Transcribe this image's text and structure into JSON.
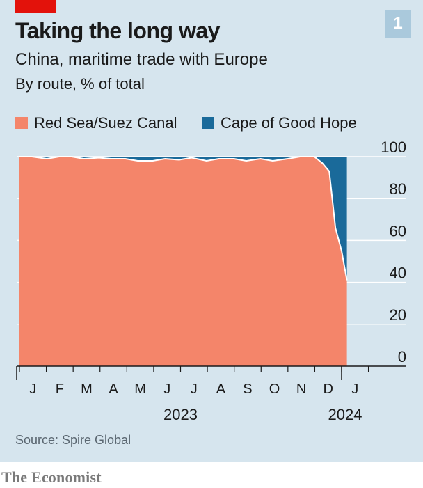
{
  "header": {
    "title": "Taking the long way",
    "subtitle": "China, maritime trade with Europe",
    "unit_line": "By route, % of total",
    "chart_number": "1"
  },
  "legend": [
    {
      "label": "Red Sea/Suez Canal",
      "color": "#f4856a"
    },
    {
      "label": "Cape of Good Hope",
      "color": "#1a6a9a"
    }
  ],
  "source": "Source: Spire Global",
  "brand": "The Economist",
  "chart_data": {
    "type": "area",
    "stacked": true,
    "x_tick_labels": [
      "J",
      "F",
      "M",
      "A",
      "M",
      "J",
      "J",
      "A",
      "S",
      "O",
      "N",
      "D",
      "J"
    ],
    "x_year_labels": [
      "2023",
      "2024"
    ],
    "y_tick_labels": [
      "100",
      "80",
      "60",
      "40",
      "20",
      "0"
    ],
    "ylim": [
      0,
      100
    ],
    "y_axis_side": "right",
    "grid": true,
    "x": [
      "2023-01-01",
      "2023-01-15",
      "2023-02-01",
      "2023-02-15",
      "2023-03-01",
      "2023-03-15",
      "2023-04-01",
      "2023-04-15",
      "2023-05-01",
      "2023-05-15",
      "2023-06-01",
      "2023-06-15",
      "2023-07-01",
      "2023-07-15",
      "2023-08-01",
      "2023-08-15",
      "2023-09-01",
      "2023-09-15",
      "2023-10-01",
      "2023-10-15",
      "2023-11-01",
      "2023-11-15",
      "2023-12-01",
      "2023-12-10",
      "2023-12-18",
      "2023-12-25",
      "2024-01-01",
      "2024-01-07"
    ],
    "series": [
      {
        "name": "Red Sea/Suez Canal",
        "values": [
          100,
          100,
          99,
          100,
          100,
          99,
          99.5,
          99,
          99,
          98,
          98,
          99,
          98.5,
          99.5,
          98,
          99,
          99,
          98,
          99,
          98,
          99,
          100,
          100,
          97,
          93,
          66,
          55,
          41
        ]
      },
      {
        "name": "Cape of Good Hope",
        "values": [
          0,
          0,
          1,
          0,
          0,
          1,
          0.5,
          1,
          1,
          2,
          2,
          1,
          1.5,
          0.5,
          2,
          1,
          1,
          2,
          1,
          2,
          1,
          0,
          0,
          3,
          7,
          34,
          45,
          59
        ]
      }
    ]
  }
}
